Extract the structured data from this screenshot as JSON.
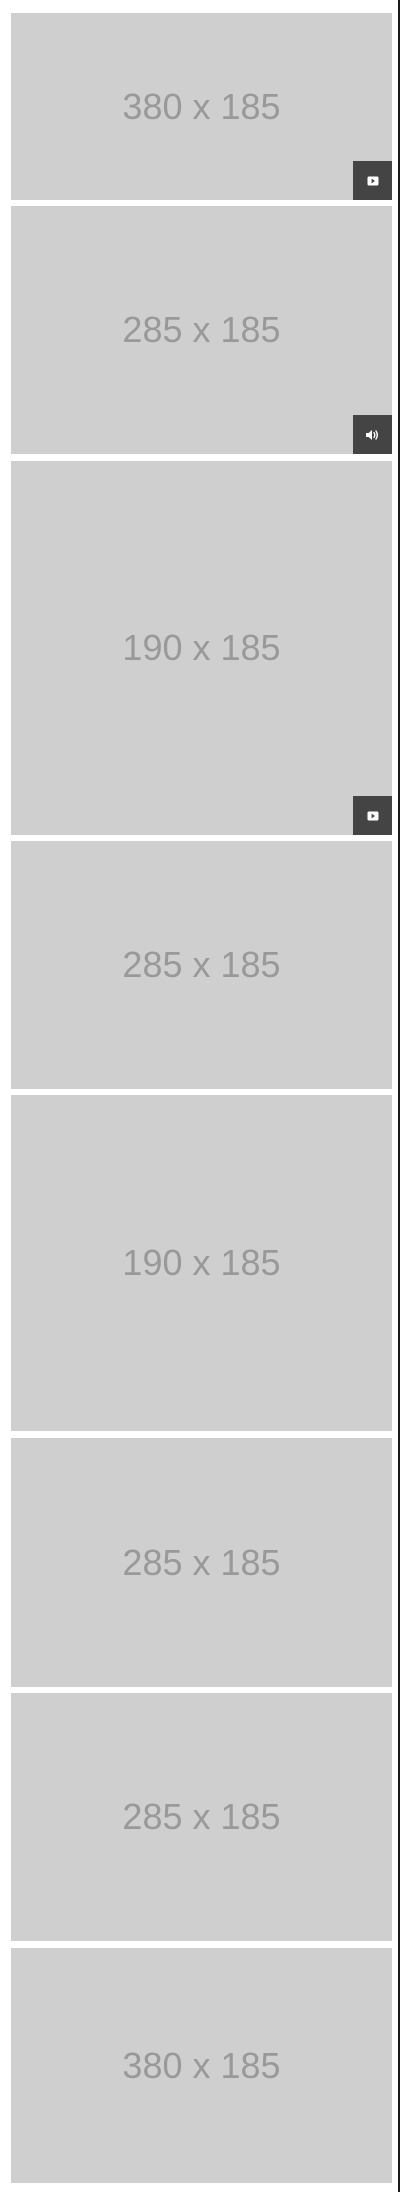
{
  "feed": {
    "tiles": [
      {
        "label": "380 x 185",
        "badge": "video-icon"
      },
      {
        "label": "285 x 185",
        "badge": "audio-icon"
      },
      {
        "label": "190 x 185",
        "badge": "video-icon"
      },
      {
        "label": "285 x 185",
        "badge": null
      },
      {
        "label": "190 x 185",
        "badge": null
      },
      {
        "label": "285 x 185",
        "badge": null
      },
      {
        "label": "285 x 185",
        "badge": null
      },
      {
        "label": "380 x 185",
        "badge": null
      }
    ]
  },
  "colors": {
    "placeholder_bg": "#cfcfcf",
    "placeholder_text": "#999999",
    "badge_bg": "#444444",
    "border": "#1a1a1a"
  }
}
